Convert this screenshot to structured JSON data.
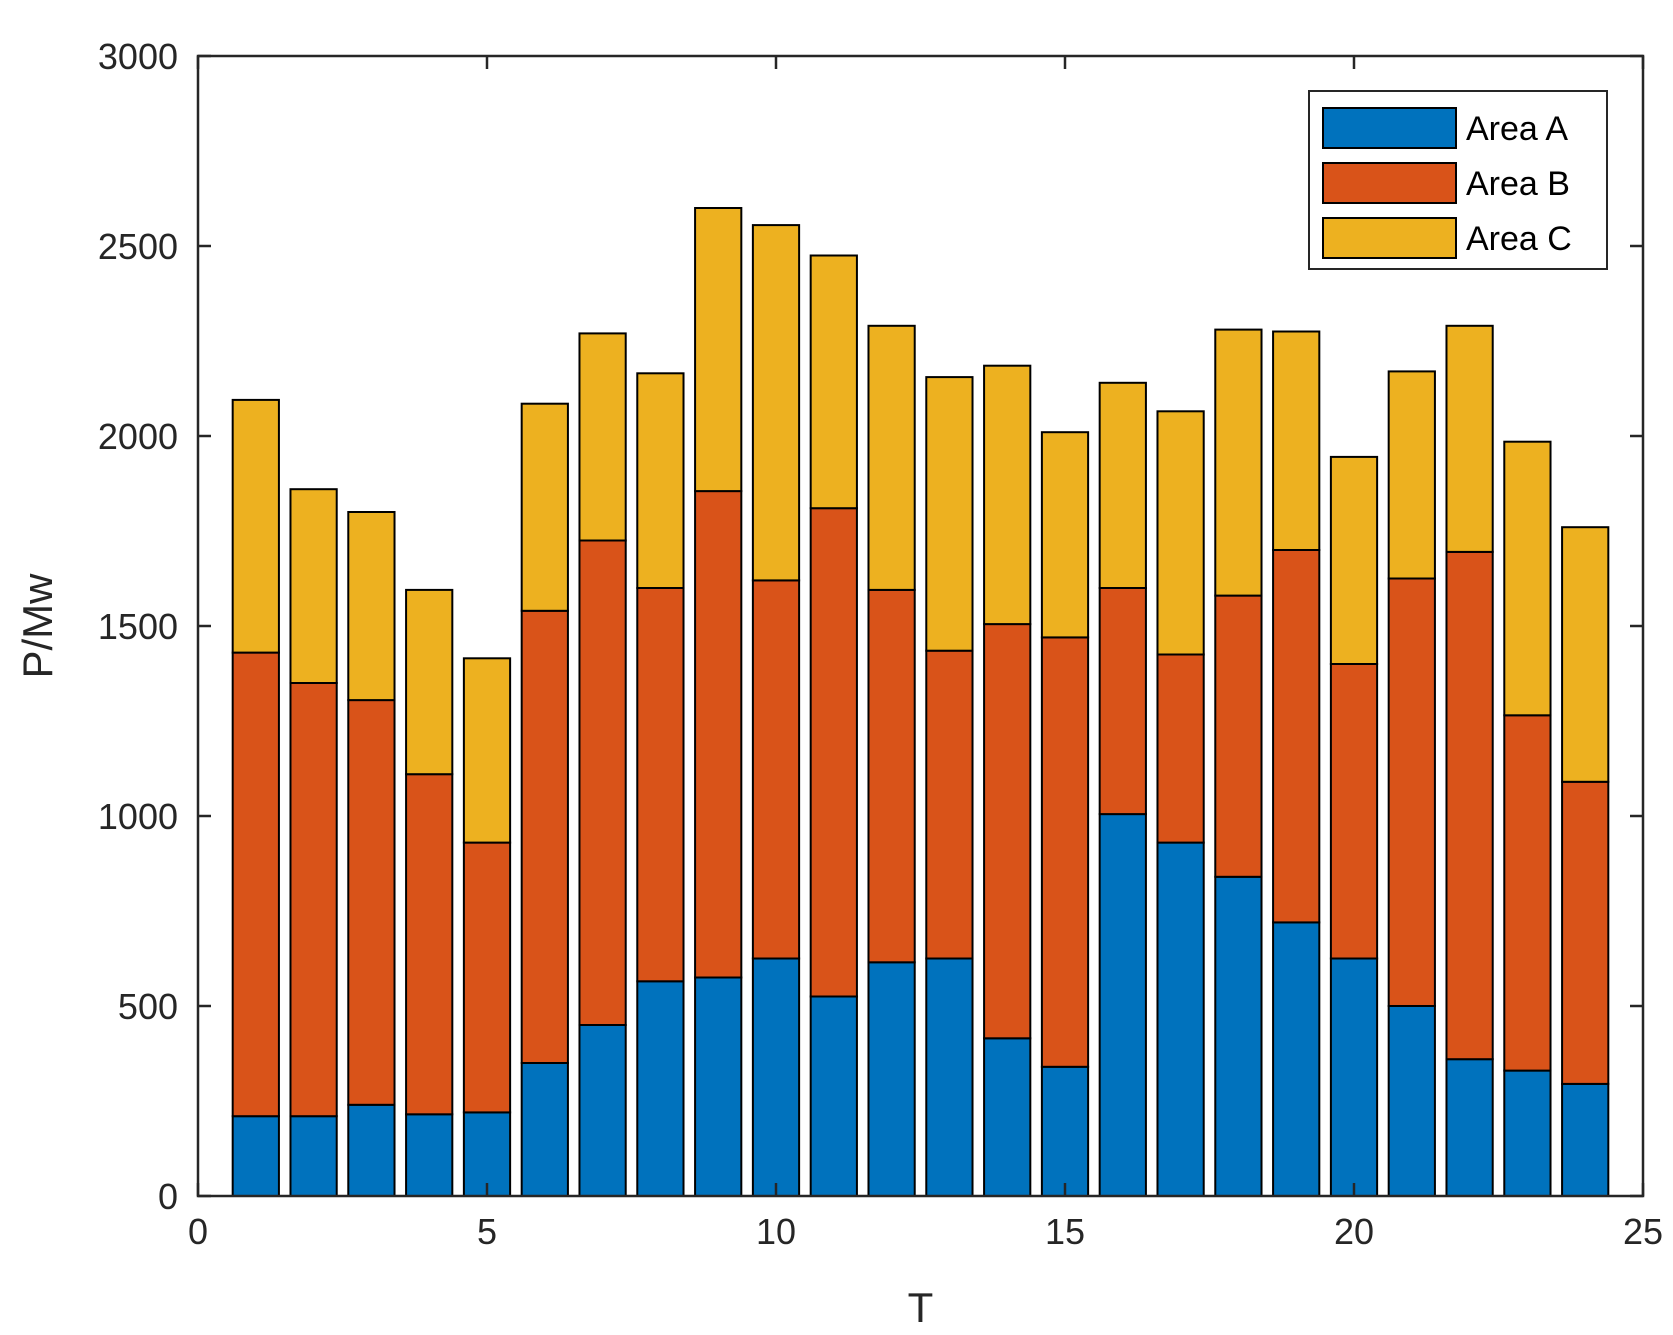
{
  "chart_data": {
    "type": "bar",
    "stacked": true,
    "title": "",
    "xlabel": "T",
    "ylabel": "P/Mw",
    "xlim": [
      0,
      25
    ],
    "ylim": [
      0,
      3000
    ],
    "xticks": [
      0,
      5,
      10,
      15,
      20,
      25
    ],
    "yticks": [
      0,
      500,
      1000,
      1500,
      2000,
      2500,
      3000
    ],
    "grid": false,
    "legend_position": "top-right",
    "x": [
      1,
      2,
      3,
      4,
      5,
      6,
      7,
      8,
      9,
      10,
      11,
      12,
      13,
      14,
      15,
      16,
      17,
      18,
      19,
      20,
      21,
      22,
      23,
      24
    ],
    "series": [
      {
        "name": "Area A",
        "color": "#0072BD",
        "values": [
          210,
          210,
          240,
          215,
          220,
          350,
          450,
          565,
          575,
          625,
          525,
          615,
          625,
          415,
          340,
          1005,
          930,
          840,
          720,
          625,
          500,
          360,
          330,
          295
        ]
      },
      {
        "name": "Area B",
        "color": "#D95319",
        "values": [
          1220,
          1140,
          1065,
          895,
          710,
          1190,
          1275,
          1035,
          1280,
          995,
          1285,
          980,
          810,
          1090,
          1130,
          595,
          495,
          740,
          980,
          775,
          1125,
          1335,
          935,
          795
        ]
      },
      {
        "name": "Area C",
        "color": "#EDB120",
        "values": [
          665,
          510,
          495,
          485,
          485,
          545,
          545,
          565,
          745,
          935,
          665,
          695,
          720,
          680,
          540,
          540,
          640,
          700,
          575,
          545,
          545,
          595,
          720,
          670
        ]
      }
    ]
  }
}
